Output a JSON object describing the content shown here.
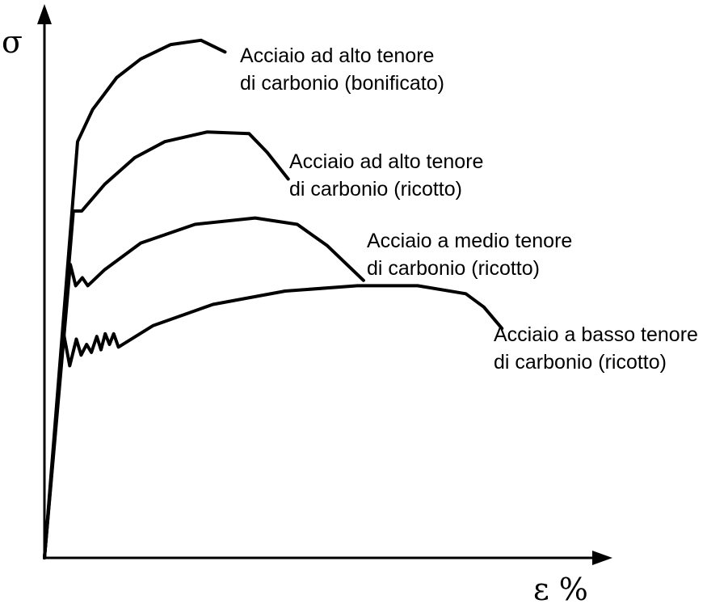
{
  "chart_data": {
    "type": "line",
    "title": "",
    "ylabel": "σ",
    "xlabel": "ε %",
    "xlim": [
      0,
      100
    ],
    "ylim": [
      0,
      100
    ],
    "grid": false,
    "legend": "inline labels next to curve ends",
    "series": [
      {
        "label_lines": [
          "Acciaio ad alto tenore",
          "di carbonio (bonificato)"
        ],
        "points": [
          [
            0,
            0
          ],
          [
            5.5,
            78
          ],
          [
            8,
            84
          ],
          [
            12,
            90
          ],
          [
            16,
            93.5
          ],
          [
            21,
            96.2
          ],
          [
            26,
            97
          ],
          [
            30,
            94.8
          ]
        ]
      },
      {
        "label_lines": [
          "Acciaio ad alto tenore",
          "di carbonio (ricotto)"
        ],
        "points": [
          [
            0,
            0
          ],
          [
            4.8,
            65
          ],
          [
            6.2,
            65
          ],
          [
            10,
            70
          ],
          [
            15,
            75
          ],
          [
            20,
            78
          ],
          [
            27,
            79.8
          ],
          [
            34,
            79.5
          ],
          [
            37,
            76
          ],
          [
            40.5,
            71
          ]
        ]
      },
      {
        "label_lines": [
          "Acciaio a medio tenore",
          "di carbonio (ricotto)"
        ],
        "points": [
          [
            0,
            0
          ],
          [
            4.3,
            55
          ],
          [
            5.2,
            51
          ],
          [
            6.3,
            52.5
          ],
          [
            7.2,
            51
          ],
          [
            10,
            54
          ],
          [
            16,
            59
          ],
          [
            25,
            62.5
          ],
          [
            35,
            63.7
          ],
          [
            42,
            62.5
          ],
          [
            47,
            58.5
          ],
          [
            53,
            52
          ]
        ]
      },
      {
        "label_lines": [
          "Acciaio a basso tenore",
          "di carbonio (ricotto)"
        ],
        "points": [
          [
            0,
            0
          ],
          [
            3.2,
            42
          ],
          [
            4.2,
            36
          ],
          [
            5.3,
            41
          ],
          [
            6.1,
            38
          ],
          [
            7.0,
            40
          ],
          [
            7.8,
            38.5
          ],
          [
            8.7,
            41.5
          ],
          [
            9.4,
            39
          ],
          [
            10.1,
            42
          ],
          [
            10.8,
            40
          ],
          [
            11.5,
            42
          ],
          [
            12.3,
            39.5
          ],
          [
            18,
            43.5
          ],
          [
            28,
            47.5
          ],
          [
            40,
            50
          ],
          [
            52,
            51
          ],
          [
            62,
            51
          ],
          [
            70,
            49.5
          ],
          [
            73,
            47
          ],
          [
            76,
            43
          ]
        ]
      }
    ]
  }
}
